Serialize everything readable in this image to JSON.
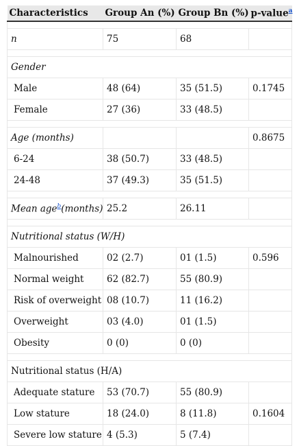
{
  "header": {
    "col1": "Characteristics",
    "col2": "Group An (%)",
    "col3": "Group Bn (%)",
    "col4": "p-value",
    "col4_sup": "a"
  },
  "rows": {
    "n": {
      "label": "n",
      "a": "75",
      "b": "68"
    },
    "gender": {
      "label": "Gender"
    },
    "male": {
      "label": "Male",
      "a": "48 (64)",
      "b": "35 (51.5)",
      "p": "0.1745"
    },
    "female": {
      "label": "Female",
      "a": "27 (36)",
      "b": "33 (48.5)"
    },
    "age": {
      "label": "Age (months)",
      "p": "0.8675"
    },
    "age_6_24": {
      "label": "6-24",
      "a": "38 (50.7)",
      "b": "33 (48.5)"
    },
    "age_24_48": {
      "label": "24-48",
      "a": "37 (49.3)",
      "b": "35 (51.5)"
    },
    "mean_age": {
      "label": "Mean age",
      "sup": "b",
      "label_suffix": "(months)",
      "a": "25.2",
      "b": "26.11"
    },
    "nut_wh": {
      "label": "Nutritional status (W/H)"
    },
    "malnourished": {
      "label": "Malnourished",
      "a": "02 (2.7)",
      "b": "01 (1.5)",
      "p": "0.596"
    },
    "normal_weight": {
      "label": "Normal weight",
      "a": "62 (82.7)",
      "b": "55 (80.9)"
    },
    "risk_overweight": {
      "label": "Risk of overweight",
      "a": "08 (10.7)",
      "b": "11 (16.2)"
    },
    "overweight": {
      "label": "Overweight",
      "a": "03 (4.0)",
      "b": "01 (1.5)"
    },
    "obesity": {
      "label": "Obesity",
      "a": "0 (0)",
      "b": "0 (0)"
    },
    "nut_ha": {
      "label": "Nutritional status (H/A)"
    },
    "adequate_stature": {
      "label": "Adequate stature",
      "a": "53 (70.7)",
      "b": "55 (80.9)"
    },
    "low_stature": {
      "label": "Low stature",
      "a": "18 (24.0)",
      "b": "8 (11.8)",
      "p": "0.1604"
    },
    "severe_low_stature": {
      "label": "Severe low stature",
      "a": "4 (5.3)",
      "b": "5 (7.4)"
    }
  }
}
